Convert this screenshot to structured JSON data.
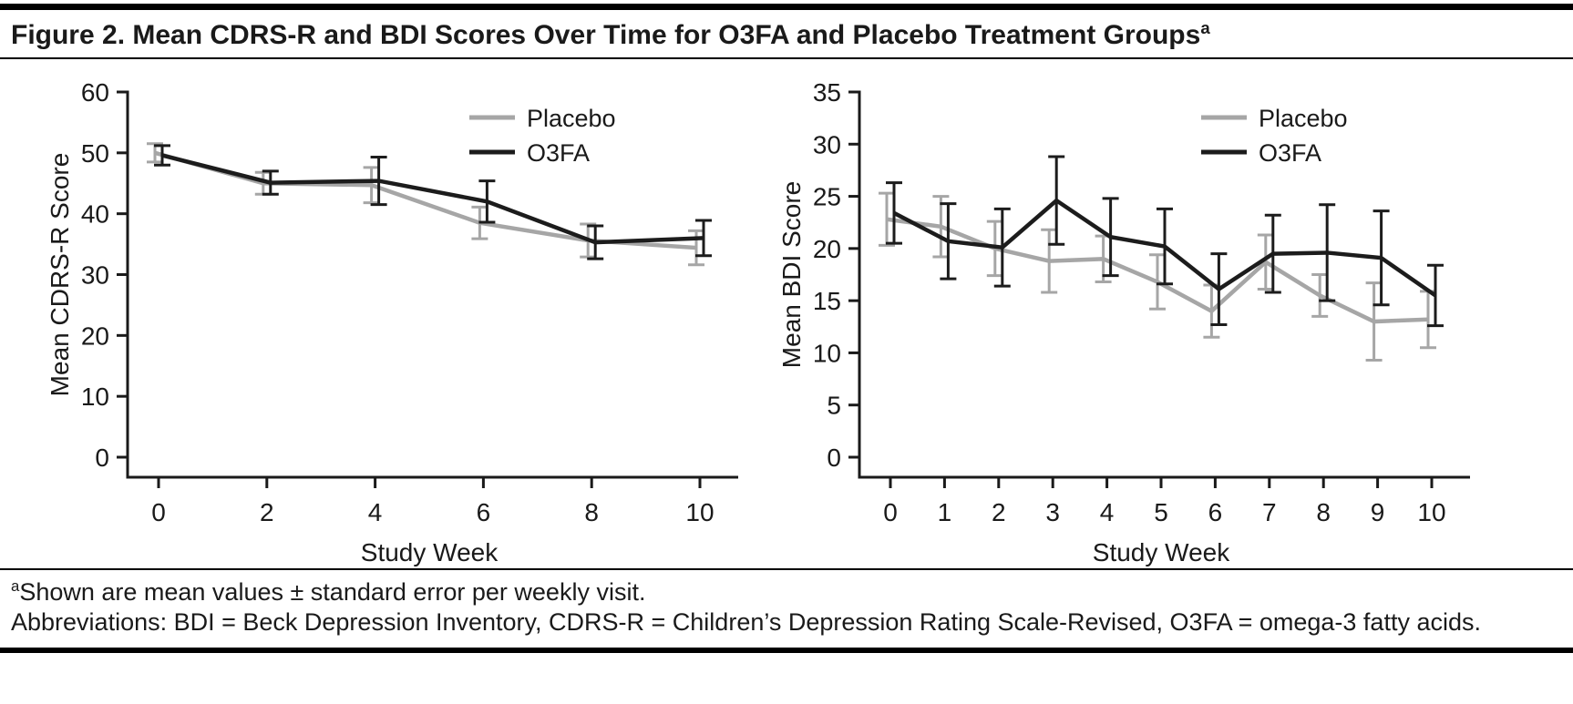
{
  "page": {
    "title": "Figure 2. Mean CDRS-R and BDI Scores Over Time for O3FA and Placebo Treatment Groups",
    "title_sup": "a",
    "footnote_sup": "a",
    "footnote1": "Shown are mean values ± standard error per weekly visit.",
    "footnote2": "Abbreviations: BDI = Beck Depression Inventory, CDRS-R = Children’s Depression Rating Scale-Revised, O3FA = omega-3 fatty acids."
  },
  "colors": {
    "placebo": "#a6a6a6",
    "o3fa": "#1c1c1c",
    "axis": "#1a1a1a"
  },
  "chart_data": [
    {
      "type": "line",
      "title": "",
      "xlabel": "Study Week",
      "ylabel": "Mean CDRS-R Score",
      "x": [
        0,
        2,
        4,
        6,
        8,
        10
      ],
      "xticks": [
        0,
        2,
        4,
        6,
        8,
        10
      ],
      "yticks": [
        0,
        10,
        20,
        30,
        40,
        50,
        60
      ],
      "ylim": [
        0,
        60
      ],
      "grid": false,
      "legend_position": "top-right",
      "error_bars": "mean ± standard error",
      "series": [
        {
          "name": "Placebo",
          "color_key": "placebo",
          "values": [
            50.0,
            45.0,
            44.7,
            38.5,
            35.6,
            34.4
          ],
          "errors": [
            1.5,
            1.8,
            2.9,
            2.6,
            2.7,
            2.8
          ]
        },
        {
          "name": "O3FA",
          "color_key": "o3fa",
          "values": [
            49.6,
            45.1,
            45.4,
            42.0,
            35.3,
            36.0
          ],
          "errors": [
            1.6,
            1.9,
            3.9,
            3.4,
            2.7,
            2.9
          ]
        }
      ]
    },
    {
      "type": "line",
      "title": "",
      "xlabel": "Study Week",
      "ylabel": "Mean BDI Score",
      "x": [
        0,
        1,
        2,
        3,
        4,
        5,
        6,
        7,
        8,
        9,
        10
      ],
      "xticks": [
        0,
        1,
        2,
        3,
        4,
        5,
        6,
        7,
        8,
        9,
        10
      ],
      "yticks": [
        0,
        5,
        10,
        15,
        20,
        25,
        30,
        35
      ],
      "ylim": [
        0,
        35
      ],
      "grid": false,
      "legend_position": "top-right",
      "error_bars": "mean ± standard error",
      "series": [
        {
          "name": "Placebo",
          "color_key": "placebo",
          "values": [
            22.8,
            22.1,
            20.0,
            18.8,
            19.0,
            16.8,
            14.0,
            18.7,
            15.5,
            13.0,
            13.2
          ],
          "errors": [
            2.5,
            2.9,
            2.6,
            3.0,
            2.2,
            2.6,
            2.5,
            2.6,
            2.0,
            3.7,
            2.7
          ]
        },
        {
          "name": "O3FA",
          "color_key": "o3fa",
          "values": [
            23.4,
            20.7,
            20.1,
            24.6,
            21.1,
            20.2,
            16.1,
            19.5,
            19.6,
            19.1,
            15.5
          ],
          "errors": [
            2.9,
            3.6,
            3.7,
            4.2,
            3.7,
            3.6,
            3.4,
            3.7,
            4.6,
            4.5,
            2.9
          ]
        }
      ]
    }
  ]
}
